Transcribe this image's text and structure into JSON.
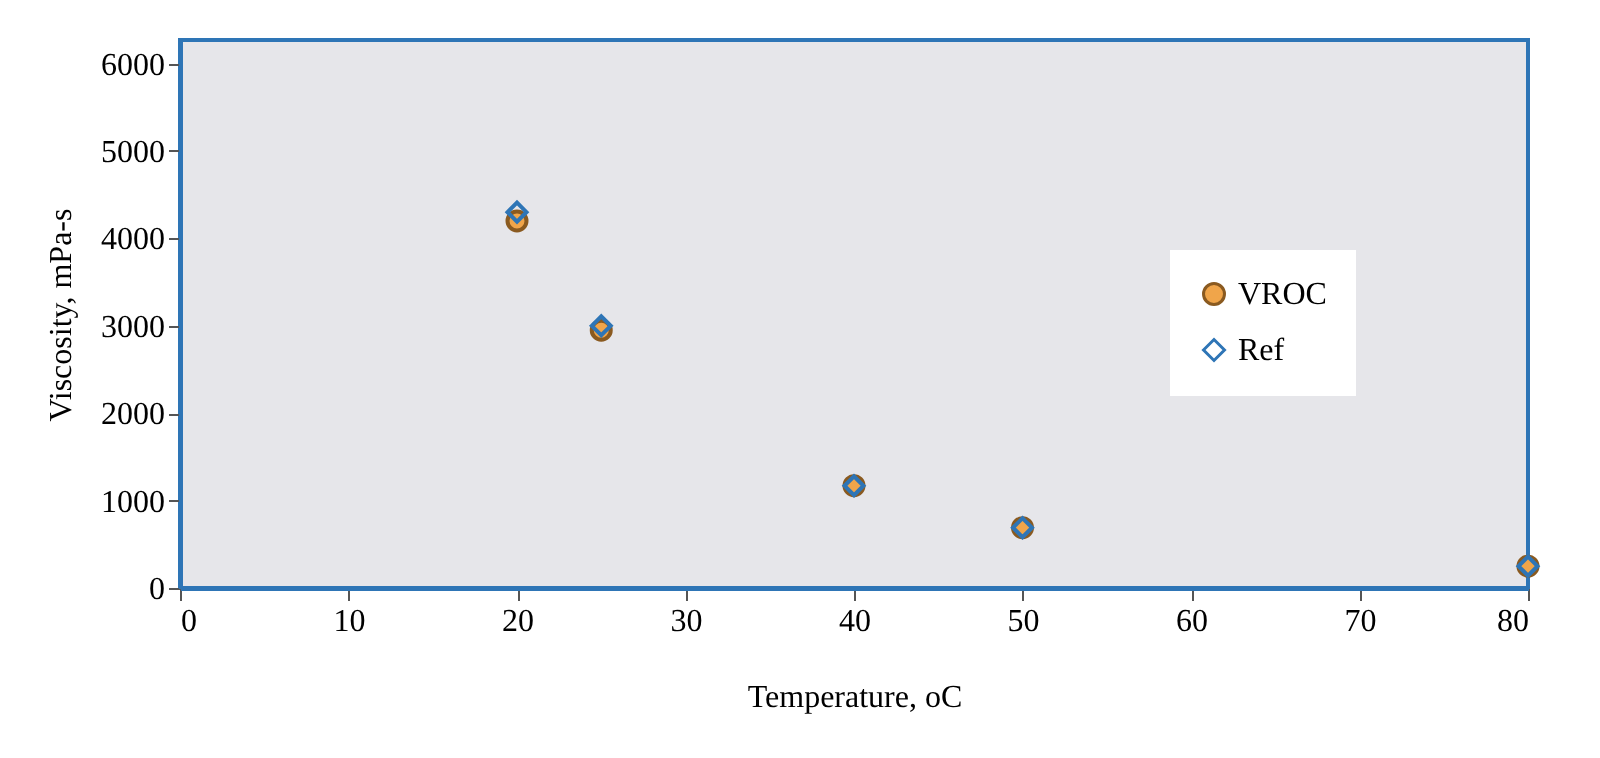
{
  "chart_data": {
    "type": "scatter",
    "xlabel": "Temperature, oC",
    "ylabel": "Viscosity, mPa-s",
    "x": [
      20,
      25,
      40,
      50,
      80
    ],
    "series": [
      {
        "name": "VROC",
        "color": "#f0a54a",
        "marker": "circle",
        "values": [
          4200,
          2950,
          1170,
          690,
          250
        ]
      },
      {
        "name": "Ref",
        "color": "#2e75b6",
        "marker": "diamond",
        "values": [
          4300,
          3000,
          1170,
          690,
          250
        ]
      }
    ],
    "xlim": [
      0,
      80
    ],
    "xticks": [
      0,
      10,
      20,
      30,
      40,
      50,
      60,
      70,
      80
    ],
    "ylim": [
      0,
      6270
    ],
    "yticks": [
      0,
      1000,
      2000,
      3000,
      4000,
      5000,
      6000
    ],
    "grid": false,
    "legend": "right"
  }
}
